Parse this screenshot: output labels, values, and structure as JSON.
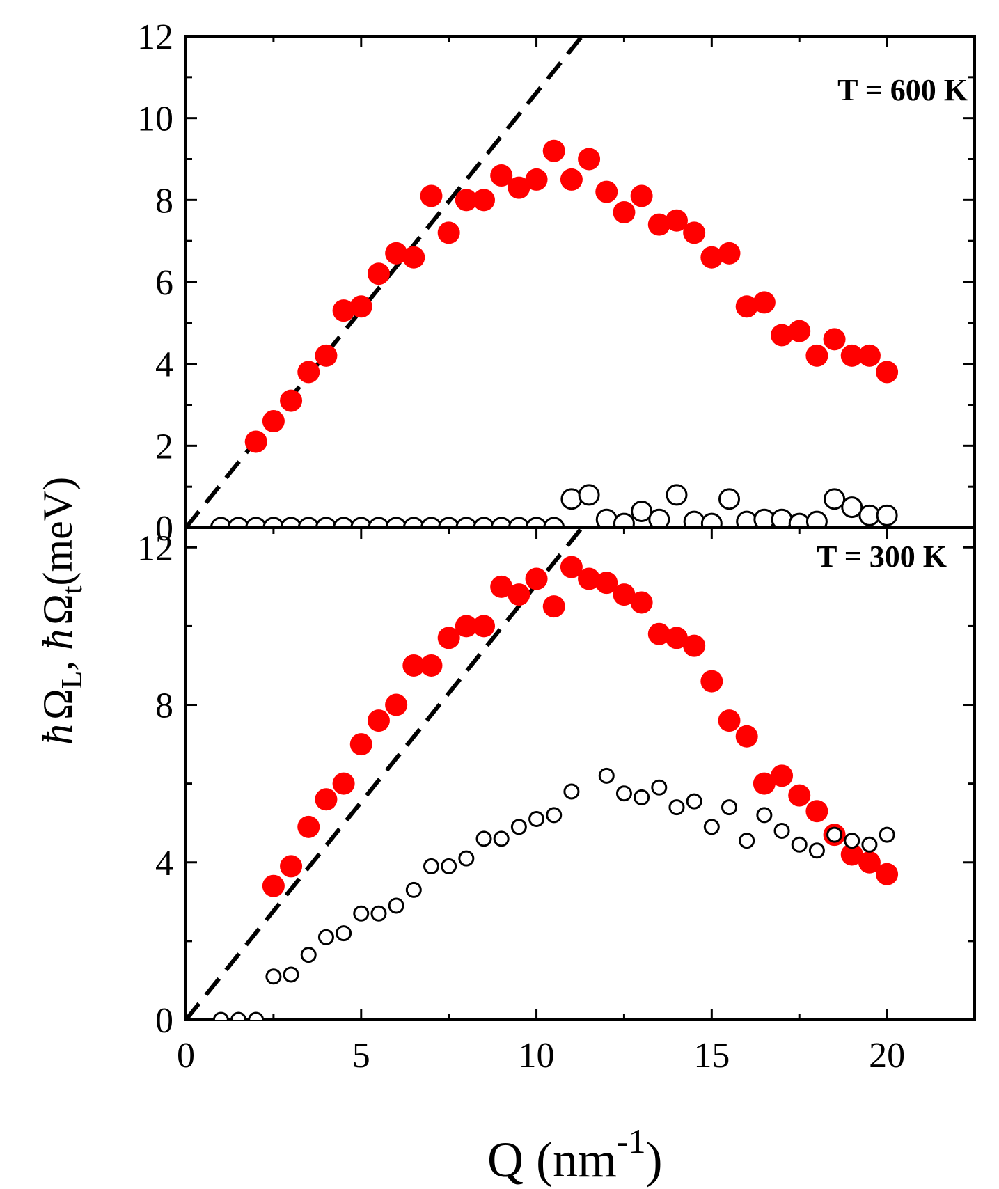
{
  "chart_data": [
    {
      "type": "scatter",
      "panel": "top",
      "title": "T = 600 K",
      "xlabel": "Q (nm-1)",
      "ylabel": "ħΩL, ħΩt (meV)",
      "xlim": [
        0,
        22.5
      ],
      "ylim": [
        0,
        12
      ],
      "xticks": [
        0,
        5,
        10,
        15,
        20
      ],
      "yticks": [
        0,
        2,
        4,
        6,
        8,
        10,
        12
      ],
      "series": [
        {
          "name": "ħΩL",
          "style": "filled",
          "color": "#ff0000",
          "x": [
            2,
            2.5,
            3,
            3.5,
            4,
            4.5,
            5,
            5.5,
            6,
            6.5,
            7,
            7.5,
            8,
            8.5,
            9,
            9.5,
            10,
            10.5,
            11,
            11.5,
            12,
            12.5,
            13,
            13.5,
            14,
            14.5,
            15,
            15.5,
            16,
            16.5,
            17,
            17.5,
            18,
            18.5,
            19,
            19.5,
            20
          ],
          "y": [
            2.1,
            2.6,
            3.1,
            3.8,
            4.2,
            5.3,
            5.4,
            6.2,
            6.7,
            6.6,
            8.1,
            7.2,
            8.0,
            8.0,
            8.6,
            8.3,
            8.5,
            9.2,
            8.5,
            9.0,
            8.2,
            7.7,
            8.1,
            7.4,
            7.5,
            7.2,
            6.6,
            6.7,
            5.4,
            5.5,
            4.7,
            4.8,
            4.2,
            4.6,
            4.2,
            4.2,
            3.8
          ]
        },
        {
          "name": "ħΩt",
          "style": "open",
          "color": "#000000",
          "x": [
            1,
            1.5,
            2,
            2.5,
            3,
            3.5,
            4,
            4.5,
            5,
            5.5,
            6,
            6.5,
            7,
            7.5,
            8,
            8.5,
            9,
            9.5,
            10,
            10.5,
            11,
            11.5,
            12,
            12.5,
            13,
            13.5,
            14,
            14.5,
            15,
            15.5,
            16,
            16.5,
            17,
            17.5,
            18,
            18.5,
            19,
            19.5,
            20
          ],
          "y": [
            0,
            0,
            0,
            0,
            0,
            0,
            0,
            0,
            0,
            0,
            0,
            0,
            0,
            0,
            0,
            0,
            0,
            0,
            0,
            0,
            0.7,
            0.8,
            0.2,
            0.1,
            0.4,
            0.2,
            0.8,
            0.15,
            0.1,
            0.7,
            0.15,
            0.2,
            0.2,
            0.1,
            0.15,
            0.7,
            0.5,
            0.3,
            0.3
          ]
        }
      ],
      "reference_line": {
        "style": "dashed",
        "x": [
          0,
          11.3
        ],
        "y": [
          0,
          12
        ]
      }
    },
    {
      "type": "scatter",
      "panel": "bottom",
      "title": "T = 300 K",
      "xlabel": "Q (nm-1)",
      "ylabel": "ħΩL, ħΩt (meV)",
      "xlim": [
        0,
        22.5
      ],
      "ylim": [
        0,
        12.5
      ],
      "xticks": [
        0,
        5,
        10,
        15,
        20
      ],
      "yticks": [
        0,
        4,
        8,
        12
      ],
      "series": [
        {
          "name": "ħΩL",
          "style": "filled",
          "color": "#ff0000",
          "x": [
            2.5,
            3,
            3.5,
            4,
            4.5,
            5,
            5.5,
            6,
            6.5,
            7,
            7.5,
            8,
            8.5,
            9,
            9.5,
            10,
            10.5,
            11,
            11.5,
            12,
            12.5,
            13,
            13.5,
            14,
            14.5,
            15,
            15.5,
            16,
            16.5,
            17,
            17.5,
            18,
            18.5,
            19,
            19.5,
            20
          ],
          "y": [
            3.4,
            3.9,
            4.9,
            5.6,
            6.0,
            7.0,
            7.6,
            8.0,
            9.0,
            9.0,
            9.7,
            10.0,
            10.0,
            11.0,
            10.8,
            11.2,
            10.5,
            11.5,
            11.2,
            11.1,
            10.8,
            10.6,
            9.8,
            9.7,
            9.5,
            8.6,
            7.6,
            7.2,
            6.0,
            6.2,
            5.7,
            5.3,
            4.7,
            4.2,
            4.0,
            3.7
          ]
        },
        {
          "name": "ħΩt",
          "style": "open",
          "color": "#000000",
          "x": [
            1,
            1.5,
            2,
            2.5,
            3,
            3.5,
            4,
            4.5,
            5,
            5.5,
            6,
            6.5,
            7,
            7.5,
            8,
            8.5,
            9,
            9.5,
            10,
            10.5,
            11,
            12,
            12.5,
            13,
            13.5,
            14,
            14.5,
            15,
            15.5,
            16,
            16.5,
            17,
            17.5,
            18,
            18.5,
            19,
            19.5,
            20
          ],
          "y": [
            0,
            0,
            0,
            1.1,
            1.15,
            1.65,
            2.1,
            2.2,
            2.7,
            2.7,
            2.9,
            3.3,
            3.9,
            3.9,
            4.1,
            4.6,
            4.6,
            4.9,
            5.1,
            5.2,
            5.8,
            6.2,
            5.75,
            5.65,
            5.9,
            5.4,
            5.55,
            4.9,
            5.4,
            4.55,
            5.2,
            4.8,
            4.45,
            4.3,
            4.7,
            4.55,
            4.45,
            4.7
          ]
        }
      ],
      "reference_line": {
        "style": "dashed",
        "x": [
          0,
          11.3
        ],
        "y": [
          0,
          12.5
        ]
      }
    }
  ],
  "axis_text": {
    "xlabel_main": "Q (nm",
    "xlabel_sup": "-1",
    "xlabel_close": ")",
    "ylabel_hbar": "ħ",
    "ylabel_omega": "Ω",
    "ylabel_sub_L": "L",
    "ylabel_sep": ", ",
    "ylabel_sub_t": "t",
    "ylabel_unit": "(meV)"
  }
}
